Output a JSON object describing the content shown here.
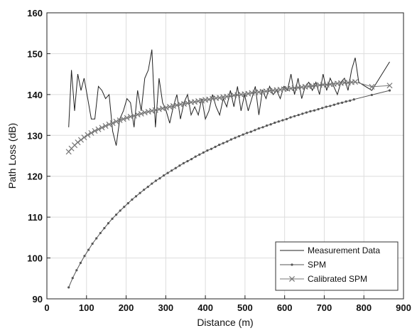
{
  "chart_data": {
    "type": "line",
    "title": "",
    "xlabel": "Distance (m)",
    "ylabel": "Path Loss (dB)",
    "xlim": [
      0,
      900
    ],
    "ylim": [
      90,
      160
    ],
    "xticks": [
      "0",
      "100",
      "200",
      "300",
      "400",
      "500",
      "600",
      "700",
      "800",
      "900"
    ],
    "yticks": [
      "90",
      "100",
      "110",
      "120",
      "130",
      "140",
      "150",
      "160"
    ],
    "grid": true,
    "legend_position": "bottom-right",
    "series": [
      {
        "name": "Measurement Data",
        "marker": "none",
        "color": "#222222",
        "x": [
          55,
          62,
          70,
          78,
          86,
          94,
          103,
          112,
          121,
          130,
          139,
          148,
          157,
          166,
          175,
          184,
          193,
          202,
          211,
          220,
          229,
          238,
          247,
          256,
          265,
          274,
          283,
          292,
          301,
          310,
          319,
          328,
          337,
          346,
          355,
          364,
          373,
          382,
          391,
          400,
          409,
          418,
          427,
          436,
          445,
          454,
          463,
          472,
          481,
          490,
          499,
          508,
          517,
          526,
          535,
          544,
          553,
          562,
          571,
          580,
          589,
          598,
          607,
          616,
          625,
          634,
          643,
          652,
          661,
          670,
          679,
          688,
          697,
          706,
          715,
          724,
          733,
          742,
          751,
          760,
          769,
          778,
          787,
          820,
          865
        ],
        "y": [
          132,
          146,
          136,
          145,
          141,
          144,
          139,
          134,
          134,
          142,
          141,
          139,
          140,
          131,
          127.5,
          134,
          136,
          139,
          138,
          132,
          141,
          136,
          144,
          146,
          151,
          132,
          144,
          138,
          136,
          133,
          137,
          140,
          134,
          138,
          140,
          135,
          137,
          135,
          139,
          134,
          136,
          140,
          137,
          135,
          139,
          137,
          141,
          137,
          142,
          136,
          140,
          136,
          139,
          142,
          135,
          141,
          139,
          142,
          140,
          141,
          139,
          142,
          141,
          145,
          140,
          144,
          139,
          142,
          143,
          141,
          143,
          140,
          145,
          141,
          144,
          142,
          140,
          143,
          144,
          141,
          146,
          149,
          143,
          141,
          148
        ]
      },
      {
        "name": "SPM",
        "marker": "dot",
        "color": "#555555",
        "x": [
          55,
          65,
          75,
          85,
          95,
          105,
          115,
          125,
          135,
          145,
          155,
          165,
          175,
          185,
          195,
          205,
          215,
          225,
          235,
          245,
          255,
          265,
          275,
          285,
          295,
          305,
          315,
          325,
          335,
          345,
          355,
          365,
          375,
          385,
          395,
          405,
          415,
          425,
          435,
          445,
          455,
          465,
          475,
          485,
          495,
          505,
          515,
          525,
          535,
          545,
          555,
          565,
          575,
          585,
          595,
          605,
          615,
          625,
          635,
          645,
          655,
          665,
          675,
          685,
          695,
          705,
          715,
          725,
          735,
          745,
          755,
          765,
          775,
          820,
          865
        ],
        "y": [
          92.8,
          95.1,
          97.0,
          98.8,
          100.5,
          102.0,
          103.5,
          104.8,
          106.1,
          107.3,
          108.5,
          109.6,
          110.6,
          111.6,
          112.5,
          113.4,
          114.3,
          115.1,
          115.9,
          116.7,
          117.4,
          118.2,
          118.9,
          119.5,
          120.2,
          120.8,
          121.4,
          122.0,
          122.6,
          123.2,
          123.7,
          124.2,
          124.8,
          125.3,
          125.8,
          126.3,
          126.7,
          127.2,
          127.7,
          128.1,
          128.5,
          129.0,
          129.4,
          129.8,
          130.2,
          130.6,
          130.9,
          131.3,
          131.7,
          132.0,
          132.4,
          132.7,
          133.1,
          133.4,
          133.7,
          134.0,
          134.4,
          134.7,
          135.0,
          135.3,
          135.6,
          135.9,
          136.1,
          136.4,
          136.7,
          137.0,
          137.2,
          137.5,
          137.8,
          138.0,
          138.3,
          138.5,
          138.8,
          139.9,
          141.0
        ]
      },
      {
        "name": "Calibrated SPM",
        "marker": "x",
        "color": "#777777",
        "x": [
          55,
          62,
          70,
          78,
          86,
          94,
          103,
          112,
          121,
          130,
          139,
          148,
          157,
          166,
          175,
          184,
          193,
          202,
          211,
          220,
          229,
          238,
          247,
          256,
          265,
          274,
          283,
          292,
          301,
          310,
          319,
          328,
          337,
          346,
          355,
          364,
          373,
          382,
          391,
          400,
          409,
          418,
          427,
          436,
          445,
          454,
          463,
          472,
          481,
          490,
          499,
          508,
          517,
          526,
          535,
          544,
          553,
          562,
          571,
          580,
          589,
          598,
          607,
          616,
          625,
          634,
          643,
          652,
          661,
          670,
          679,
          688,
          697,
          706,
          715,
          724,
          733,
          742,
          751,
          760,
          769,
          778,
          820,
          865
        ],
        "y": [
          126.0,
          126.8,
          127.6,
          128.3,
          128.9,
          129.5,
          130.1,
          130.6,
          131.1,
          131.5,
          131.9,
          132.3,
          132.7,
          133.0,
          133.4,
          133.7,
          134.0,
          134.3,
          134.6,
          134.8,
          135.1,
          135.3,
          135.6,
          135.8,
          136.0,
          136.2,
          136.4,
          136.6,
          136.8,
          137.0,
          137.2,
          137.4,
          137.6,
          137.7,
          137.9,
          138.1,
          138.2,
          138.4,
          138.5,
          138.7,
          138.8,
          139.0,
          139.1,
          139.2,
          139.4,
          139.5,
          139.6,
          139.8,
          139.9,
          140.0,
          140.1,
          140.2,
          140.4,
          140.5,
          140.6,
          140.7,
          140.8,
          140.9,
          141.0,
          141.1,
          141.2,
          141.3,
          141.4,
          141.5,
          141.6,
          141.7,
          141.8,
          141.9,
          142.0,
          142.1,
          142.2,
          142.3,
          142.4,
          142.4,
          142.5,
          142.6,
          142.7,
          142.8,
          142.9,
          142.9,
          143.0,
          143.1,
          141.9,
          142.2
        ]
      }
    ]
  }
}
